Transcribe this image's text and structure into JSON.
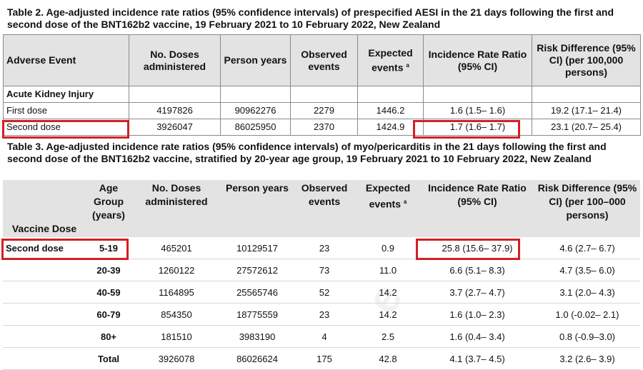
{
  "table2": {
    "caption": "Table 2. Age-adjusted incidence rate ratios (95% confidence intervals) of prespecified AESI in the 21 days following the first and second dose of the BNT162b2 vaccine, 19 February 2021 to 10 February 2022, New Zealand",
    "headers": {
      "adverse_event": "Adverse Event",
      "doses": "No. Doses administered",
      "person_years": "Person years",
      "observed": "Observed events",
      "expected": "Expected events",
      "expected_sup": "a",
      "irr": "Incidence Rate Ratio (95% CI)",
      "risk_diff": "Risk Difference (95% CI) (per 100,000 persons)"
    },
    "group_label": "Acute Kidney Injury",
    "rows": [
      {
        "label": "First dose",
        "doses": "4197826",
        "person_years": "90962276",
        "observed": "2279",
        "expected": "1446.2",
        "irr": "1.6 (1.5– 1.6)",
        "rd": "19.2 (17.1– 21.4)"
      },
      {
        "label": "Second dose",
        "doses": "3926047",
        "person_years": "86025950",
        "observed": "2370",
        "expected": "1424.9",
        "irr": "1.7 (1.6– 1.7)",
        "rd": "23.1 (20.7– 25.4)"
      }
    ]
  },
  "table3": {
    "caption": "Table 3. Age-adjusted incidence rate ratios (95% confidence intervals) of myo/pericarditis in the 21 days following the first and second dose of the BNT162b2 vaccine, stratified by 20-year age group, 19 February 2021 to 10 February 2022, New Zealand",
    "headers": {
      "vaccine_dose": "Vaccine Dose",
      "age_group": "Age Group (years)",
      "doses": "No. Doses administered",
      "person_years": "Person years",
      "observed": "Observed events",
      "expected": "Expected events",
      "expected_sup": "a",
      "irr": "Incidence Rate Ratio (95% CI)",
      "risk_diff": "Risk Difference (95% CI) (per 100–000 persons)"
    },
    "rows": [
      {
        "dose": "Second dose",
        "age": "5-19",
        "doses": "465201",
        "person_years": "10129517",
        "observed": "23",
        "expected": "0.9",
        "irr": "25.8 (15.6– 37.9)",
        "rd": "4.6 (2.7– 6.7)"
      },
      {
        "dose": "",
        "age": "20-39",
        "doses": "1260122",
        "person_years": "27572612",
        "observed": "73",
        "expected": "11.0",
        "irr": "6.6 (5.1– 8.3)",
        "rd": "4.7 (3.5– 6.0)"
      },
      {
        "dose": "",
        "age": "40-59",
        "doses": "1164895",
        "person_years": "25565746",
        "observed": "52",
        "expected": "14.2",
        "irr": "3.7 (2.7– 4.7)",
        "rd": "3.1 (2.0– 4.3)"
      },
      {
        "dose": "",
        "age": "60-79",
        "doses": "854350",
        "person_years": "18775559",
        "observed": "23",
        "expected": "14.2",
        "irr": "1.6 (1.0– 2.3)",
        "rd": "1.0 (-0.02– 2.1)"
      },
      {
        "dose": "",
        "age": "80+",
        "doses": "181510",
        "person_years": "3983190",
        "observed": "4",
        "expected": "2.5",
        "irr": "1.6 (0.4– 3.4)",
        "rd": "0.8 (-0.9–3.0)"
      },
      {
        "dose": "",
        "age": "Total",
        "doses": "3926078",
        "person_years": "86026624",
        "observed": "175",
        "expected": "42.8",
        "irr": "4.1 (3.7– 4.5)",
        "rd": "3.2 (2.6– 3.9)"
      }
    ]
  },
  "colors": {
    "highlight": "#d21f26",
    "header_bg": "#e3e3e3"
  }
}
